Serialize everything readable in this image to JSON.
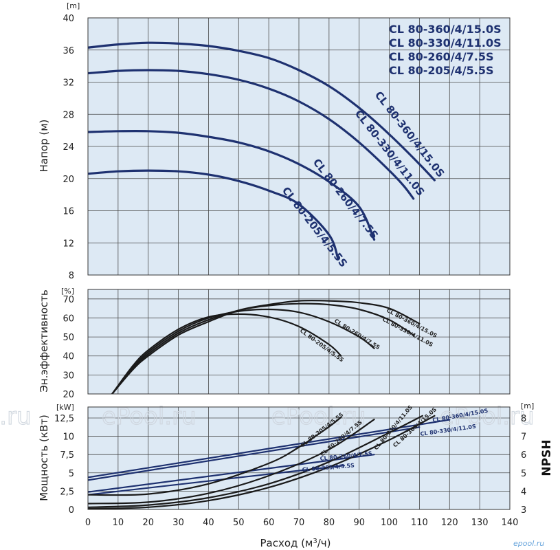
{
  "chart_data": [
    {
      "type": "line",
      "ylabel": "Напор (м)",
      "yunit": "[m]",
      "ylim": [
        8,
        40
      ],
      "yticks": [
        8,
        12,
        16,
        20,
        24,
        28,
        32,
        36,
        40
      ],
      "xlim": [
        0,
        140
      ],
      "grid": true,
      "legend": [
        "CL 80-360/4/15.0S",
        "CL 80-330/4/11.0S",
        "CL 80-260/4/7.5S",
        "CL 80-205/4/5.5S"
      ],
      "series": [
        {
          "name": "CL 80-360/4/15.0S",
          "x": [
            0,
            10,
            20,
            30,
            40,
            50,
            60,
            70,
            80,
            90,
            100,
            110,
            115
          ],
          "y": [
            36.3,
            36.7,
            36.9,
            36.8,
            36.5,
            35.9,
            35.0,
            33.5,
            31.5,
            28.8,
            25.5,
            21.8,
            19.8
          ]
        },
        {
          "name": "CL 80-330/4/11.0S",
          "x": [
            0,
            10,
            20,
            30,
            40,
            50,
            60,
            70,
            80,
            90,
            100,
            105,
            108
          ],
          "y": [
            33.1,
            33.4,
            33.5,
            33.4,
            33.0,
            32.3,
            31.2,
            29.6,
            27.4,
            24.5,
            21.0,
            19.0,
            17.5
          ]
        },
        {
          "name": "CL 80-260/4/7.5S",
          "x": [
            0,
            10,
            20,
            30,
            40,
            50,
            60,
            70,
            80,
            90,
            95
          ],
          "y": [
            25.8,
            25.9,
            25.9,
            25.7,
            25.2,
            24.5,
            23.4,
            21.8,
            19.6,
            16.5,
            12.4
          ]
        },
        {
          "name": "CL 80-205/4/5.5S",
          "x": [
            0,
            10,
            20,
            30,
            40,
            50,
            60,
            70,
            80,
            83
          ],
          "y": [
            20.6,
            20.9,
            21.0,
            20.9,
            20.5,
            19.7,
            18.5,
            16.8,
            13.0,
            10.0
          ]
        }
      ]
    },
    {
      "type": "line",
      "ylabel": "Эн.эффективность",
      "yunit": "[%]",
      "ylim": [
        20,
        75
      ],
      "yticks": [
        20,
        30,
        40,
        50,
        60,
        70
      ],
      "xlim": [
        0,
        140
      ],
      "grid": true,
      "series": [
        {
          "name": "CL 80-360/4/15.0S",
          "x": [
            8,
            15,
            20,
            30,
            40,
            50,
            60,
            70,
            80,
            90,
            100,
            110
          ],
          "y": [
            20,
            33,
            40,
            51,
            58,
            64,
            67,
            69,
            69,
            68,
            65,
            57
          ]
        },
        {
          "name": "CL 80-330/4/11.0S",
          "x": [
            8,
            15,
            20,
            30,
            40,
            50,
            60,
            70,
            80,
            90,
            100,
            108
          ],
          "y": [
            20,
            33.5,
            41,
            52,
            59,
            64,
            66.5,
            67.5,
            67,
            64.5,
            59,
            51
          ]
        },
        {
          "name": "CL 80-260/4/7.5S",
          "x": [
            8,
            15,
            20,
            30,
            40,
            50,
            60,
            70,
            80,
            90,
            95
          ],
          "y": [
            20,
            34,
            42,
            53,
            60,
            63.5,
            64.5,
            63,
            58,
            50,
            44
          ]
        },
        {
          "name": "CL 80-205/4/5.5S",
          "x": [
            8,
            15,
            20,
            30,
            40,
            50,
            60,
            70,
            80,
            84
          ],
          "y": [
            20,
            35,
            43,
            54,
            60.5,
            62,
            60.5,
            55.5,
            46,
            40
          ]
        }
      ]
    },
    {
      "type": "line",
      "ylabel": "Мощность (кВт)",
      "yunit": "[kW]",
      "ylim": [
        0,
        14
      ],
      "yticks": [
        0,
        2.5,
        5,
        7.5,
        10,
        12.5
      ],
      "ytick_labels": [
        "0",
        "2,5",
        "5",
        "7,5",
        "10",
        "12,5"
      ],
      "y2label": "NPSH",
      "y2unit": "[m]",
      "y2lim": [
        3,
        8.6
      ],
      "y2ticks": [
        3,
        4,
        5,
        6,
        7,
        8
      ],
      "xlabel_parts": [
        "Расход (м",
        "3",
        "/ч)"
      ],
      "xlim": [
        0,
        140
      ],
      "xticks": [
        0,
        10,
        20,
        30,
        40,
        50,
        60,
        70,
        80,
        90,
        100,
        110,
        120,
        130,
        140
      ],
      "grid": true,
      "power_series": [
        {
          "name": "CL 80-360/4/15.0S",
          "x": [
            0,
            20,
            40,
            60,
            80,
            100,
            115
          ],
          "y": [
            0.1,
            0.3,
            1.2,
            3.0,
            5.8,
            9.5,
            12.8
          ]
        },
        {
          "name": "CL 80-330/4/11.0S",
          "x": [
            0,
            20,
            40,
            60,
            80,
            100,
            111
          ],
          "y": [
            0.3,
            0.6,
            1.6,
            3.5,
            6.5,
            10.5,
            12.8
          ]
        },
        {
          "name": "CL 80-260/4/7.5S",
          "x": [
            0,
            20,
            40,
            60,
            80,
            95
          ],
          "y": [
            0.8,
            1.0,
            2.2,
            4.6,
            8.2,
            12.3
          ]
        },
        {
          "name": "CL 80-205/4/5.5S",
          "x": [
            0,
            20,
            40,
            60,
            70,
            80,
            84
          ],
          "y": [
            2.0,
            2.1,
            3.5,
            6.3,
            8.5,
            11.3,
            12.6
          ]
        }
      ],
      "npsh_series": [
        {
          "name": "CL 80-360/4/15.0S",
          "x": [
            0,
            120
          ],
          "y": [
            4.75,
            7.9
          ]
        },
        {
          "name": "CL 80-330/4/11.0S",
          "x": [
            0,
            110
          ],
          "y": [
            4.6,
            7.5
          ]
        },
        {
          "name": "CL 80-260/4/7.5S",
          "x": [
            0,
            95
          ],
          "y": [
            3.95,
            6.0
          ]
        },
        {
          "name": "CL 80-205/4/5.5S",
          "x": [
            0,
            85
          ],
          "y": [
            3.8,
            5.4
          ]
        }
      ]
    }
  ],
  "colors": {
    "navy": "#1e3170",
    "black": "#1a1a1a",
    "panel": "#dde9f4",
    "grid": "#4a4a4a"
  },
  "watermark": "ePool.ru",
  "logo": "epool.ru"
}
